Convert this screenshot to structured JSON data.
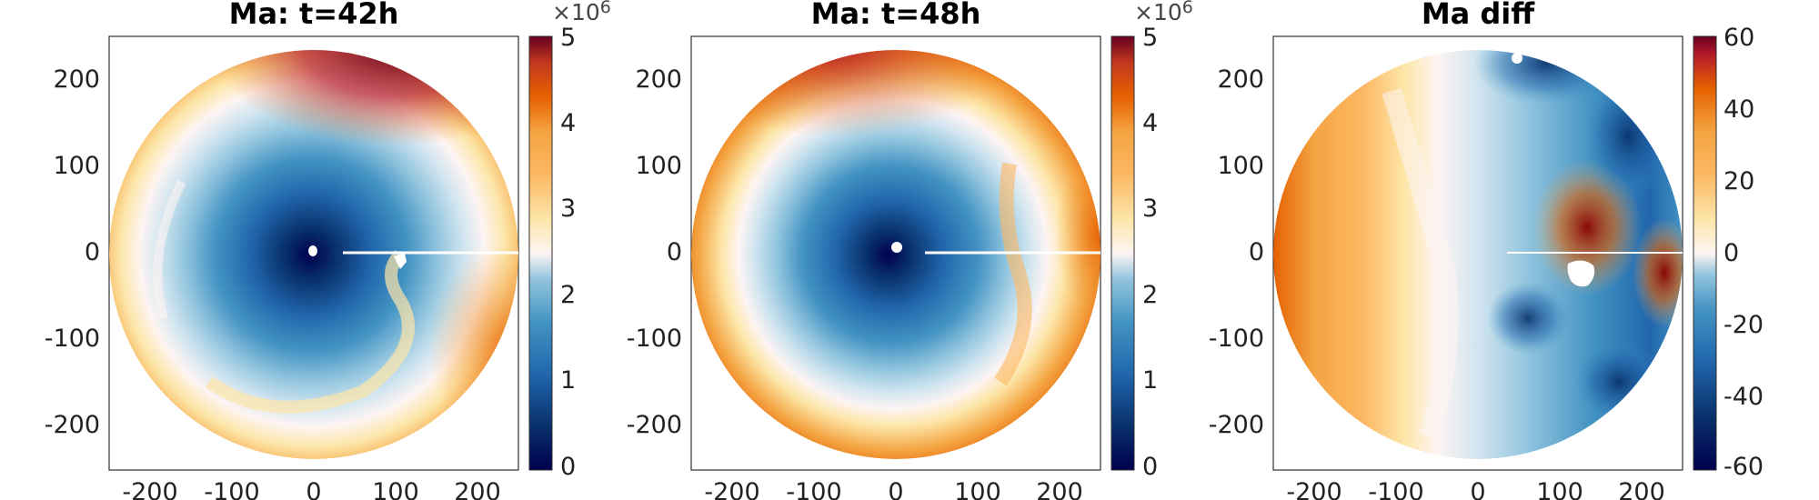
{
  "figure": {
    "colors": {
      "diverging": [
        "#00004f",
        "#08306b",
        "#2166ac",
        "#4393c3",
        "#92c5de",
        "#d1e5f0",
        "#fdf4f2",
        "#fde6a8",
        "#fdb863",
        "#f4a442",
        "#e66101",
        "#c2381f",
        "#8b0000",
        "#67001f"
      ],
      "axis": "#2f2f2f",
      "background": "#ffffff"
    }
  },
  "chart_data": [
    {
      "type": "heatmap",
      "title": "Ma: t=42h",
      "xlabel": "",
      "ylabel": "",
      "xlim": [
        -250,
        250
      ],
      "ylim": [
        -250,
        250
      ],
      "x_ticks": [
        -200,
        -100,
        0,
        100,
        200
      ],
      "y_ticks": [
        -200,
        -100,
        0,
        100,
        200
      ],
      "x_tick_labels": [
        "-200",
        "-100",
        "0",
        "100",
        "200"
      ],
      "y_tick_labels": [
        "-200",
        "-100",
        "0",
        "100",
        "200"
      ],
      "domain": "circle",
      "domain_radius": 250,
      "colorbar": {
        "range": [
          0,
          5
        ],
        "ticks": [
          0,
          1,
          2,
          3,
          4,
          5
        ],
        "tick_labels": [
          "0",
          "1",
          "2",
          "3",
          "4",
          "5"
        ],
        "exponent_base": "×10",
        "exponent_power": "6"
      },
      "description_values": {
        "center_min": 0.3,
        "ring_mid": 2.5,
        "outer_max": 5.0
      }
    },
    {
      "type": "heatmap",
      "title": "Ma: t=48h",
      "xlabel": "",
      "ylabel": "",
      "xlim": [
        -250,
        250
      ],
      "ylim": [
        -250,
        250
      ],
      "x_ticks": [
        -200,
        -100,
        0,
        100,
        200
      ],
      "y_ticks": [
        -200,
        -100,
        0,
        100,
        200
      ],
      "x_tick_labels": [
        "-200",
        "-100",
        "0",
        "100",
        "200"
      ],
      "y_tick_labels": [
        "-200",
        "-100",
        "0",
        "100",
        "200"
      ],
      "domain": "circle",
      "domain_radius": 250,
      "colorbar": {
        "range": [
          0,
          5
        ],
        "ticks": [
          0,
          1,
          2,
          3,
          4,
          5
        ],
        "tick_labels": [
          "0",
          "1",
          "2",
          "3",
          "4",
          "5"
        ],
        "exponent_base": "×10",
        "exponent_power": "6"
      },
      "description_values": {
        "center_min": 0.3,
        "ring_mid": 2.5,
        "outer_max": 5.0
      }
    },
    {
      "type": "heatmap",
      "title": "Ma diff",
      "xlabel": "",
      "ylabel": "",
      "xlim": [
        -250,
        250
      ],
      "ylim": [
        -250,
        250
      ],
      "x_ticks": [
        -200,
        -100,
        0,
        100,
        200
      ],
      "y_ticks": [
        -200,
        -100,
        0,
        100,
        200
      ],
      "x_tick_labels": [
        "-200",
        "-100",
        "0",
        "100",
        "200"
      ],
      "y_tick_labels": [
        "-200",
        "-100",
        "0",
        "100",
        "200"
      ],
      "domain": "circle",
      "domain_radius": 250,
      "colorbar": {
        "range": [
          -60,
          60
        ],
        "ticks": [
          -60,
          -40,
          -20,
          0,
          20,
          40,
          60
        ],
        "tick_labels": [
          "-60",
          "-40",
          "-20",
          "0",
          "20",
          "40",
          "60"
        ],
        "exponent_base": "",
        "exponent_power": ""
      },
      "description_values": {
        "west_value": 25,
        "east_value": -25
      }
    }
  ]
}
